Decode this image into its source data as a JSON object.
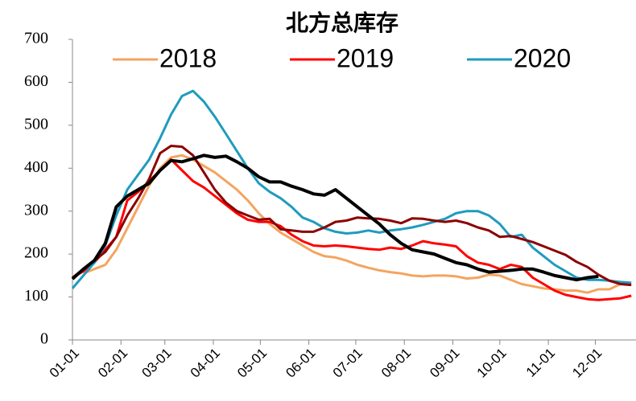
{
  "chart_data": {
    "type": "line",
    "title": "北方总库存",
    "x": [
      0,
      7,
      14,
      21,
      28,
      35,
      42,
      49,
      56,
      63,
      70,
      77,
      84,
      91,
      98,
      105,
      112,
      119,
      126,
      133,
      140,
      147,
      154,
      161,
      168,
      175,
      182,
      189,
      196,
      203,
      210,
      217,
      224,
      231,
      238,
      245,
      252,
      259,
      266,
      273,
      280,
      287,
      294,
      301,
      308,
      315,
      322,
      329,
      336,
      343,
      350,
      357
    ],
    "xlim": [
      0,
      360
    ],
    "xticks": [
      {
        "value": 0,
        "label": "01-01"
      },
      {
        "value": 31,
        "label": "02-01"
      },
      {
        "value": 59,
        "label": "03-01"
      },
      {
        "value": 90,
        "label": "04-01"
      },
      {
        "value": 120,
        "label": "05-01"
      },
      {
        "value": 151,
        "label": "06-01"
      },
      {
        "value": 181,
        "label": "07-01"
      },
      {
        "value": 212,
        "label": "08-01"
      },
      {
        "value": 243,
        "label": "09-01"
      },
      {
        "value": 273,
        "label": "10-01"
      },
      {
        "value": 304,
        "label": "11-01"
      },
      {
        "value": 334,
        "label": "12-01"
      }
    ],
    "ylim": [
      0,
      700
    ],
    "yticks": [
      0,
      100,
      200,
      300,
      400,
      500,
      600,
      700
    ],
    "series": [
      {
        "name": "2018",
        "color": "#f4a460",
        "values": [
          null,
          155,
          165,
          175,
          210,
          260,
          310,
          360,
          400,
          425,
          430,
          420,
          405,
          390,
          370,
          350,
          325,
          295,
          270,
          250,
          235,
          220,
          205,
          195,
          192,
          185,
          175,
          168,
          162,
          158,
          155,
          150,
          148,
          150,
          150,
          148,
          143,
          145,
          152,
          150,
          140,
          130,
          125,
          120,
          118,
          115,
          115,
          110,
          118,
          118,
          130,
          null
        ]
      },
      {
        "name": "2019",
        "color": "#ff0000",
        "values": [
          145,
          160,
          180,
          210,
          240,
          325,
          345,
          370,
          395,
          420,
          395,
          370,
          355,
          335,
          315,
          295,
          280,
          275,
          275,
          265,
          245,
          230,
          220,
          218,
          220,
          218,
          215,
          212,
          210,
          215,
          212,
          220,
          230,
          225,
          222,
          218,
          195,
          180,
          175,
          165,
          175,
          170,
          145,
          130,
          115,
          105,
          100,
          95,
          93,
          95,
          97,
          103
        ]
      },
      {
        "name": "2020",
        "color": "#1f9bbd",
        "values": [
          120,
          150,
          180,
          220,
          290,
          350,
          385,
          420,
          470,
          525,
          568,
          580,
          555,
          520,
          480,
          440,
          400,
          365,
          345,
          330,
          310,
          285,
          275,
          260,
          252,
          248,
          250,
          255,
          250,
          255,
          258,
          262,
          268,
          275,
          282,
          295,
          300,
          300,
          290,
          270,
          240,
          245,
          215,
          195,
          175,
          160,
          145,
          140,
          140,
          138,
          135,
          133
        ]
      },
      {
        "color": "#8b0000",
        "values": [
          145,
          165,
          185,
          205,
          240,
          290,
          330,
          375,
          435,
          452,
          450,
          430,
          390,
          350,
          320,
          300,
          290,
          280,
          282,
          258,
          255,
          252,
          252,
          262,
          275,
          278,
          285,
          283,
          282,
          278,
          272,
          283,
          282,
          278,
          275,
          278,
          272,
          262,
          255,
          240,
          242,
          235,
          228,
          218,
          208,
          198,
          182,
          170,
          152,
          138,
          130,
          128
        ]
      },
      {
        "color": "#000000",
        "values": [
          142,
          165,
          185,
          225,
          310,
          335,
          350,
          365,
          395,
          418,
          415,
          422,
          430,
          425,
          428,
          415,
          400,
          380,
          368,
          368,
          358,
          350,
          340,
          337,
          350,
          330,
          310,
          290,
          270,
          245,
          225,
          210,
          205,
          200,
          190,
          180,
          175,
          165,
          158,
          160,
          162,
          165,
          165,
          158,
          150,
          145,
          140,
          145,
          148,
          null,
          null,
          null
        ]
      }
    ]
  }
}
